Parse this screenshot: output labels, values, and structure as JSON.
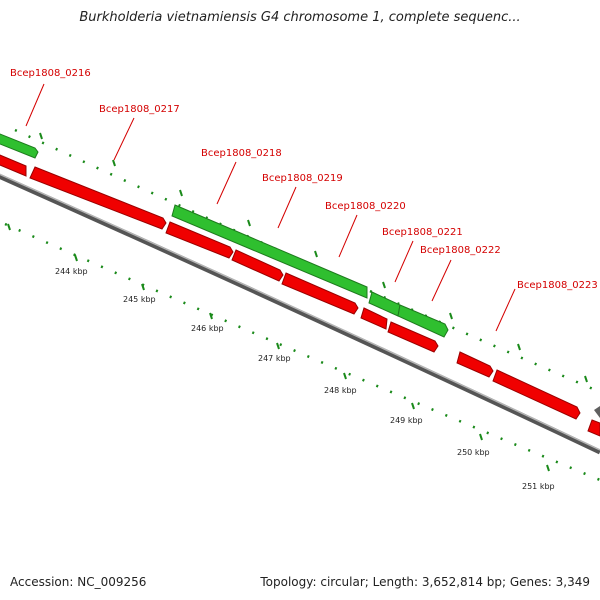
{
  "title": "Burkholderia vietnamiensis G4 chromosome 1, complete sequenc...",
  "footer": {
    "accession": "Accession: NC_009256",
    "summary": "Topology: circular; Length: 3,652,814 bp; Genes: 3,349"
  },
  "colors": {
    "gene_forward": "#2fbf2f",
    "gene_reverse": "#f00000",
    "backbone": "#7a7a7a",
    "ticks": "#1a8a1a",
    "label_text": "#d40000"
  },
  "gene_labels": [
    "Bcep1808_0216",
    "Bcep1808_0217",
    "Bcep1808_0218",
    "Bcep1808_0219",
    "Bcep1808_0220",
    "Bcep1808_0221",
    "Bcep1808_0222",
    "Bcep1808_0223"
  ],
  "kbp_labels": [
    "244 kbp",
    "245 kbp",
    "246 kbp",
    "247 kbp",
    "248 kbp",
    "249 kbp",
    "250 kbp",
    "251 kbp"
  ]
}
